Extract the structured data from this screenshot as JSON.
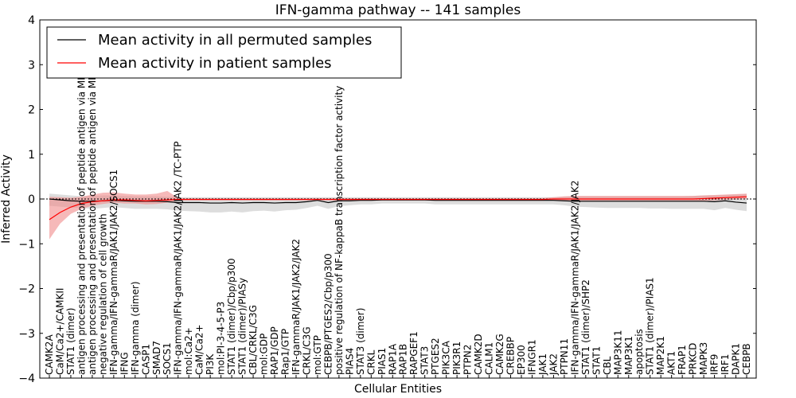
{
  "chart_data": {
    "type": "line",
    "title": "IFN-gamma pathway -- 141 samples",
    "xlabel": "Cellular Entities",
    "ylabel": "Inferred Activity",
    "ylim": [
      -4,
      4
    ],
    "yticks": [
      -4,
      -3,
      -2,
      -1,
      0,
      1,
      2,
      3,
      4
    ],
    "ytick_labels": [
      "−4",
      "−3",
      "−2",
      "−1",
      "0",
      "1",
      "2",
      "3",
      "4"
    ],
    "legend_position": "top-left",
    "categories": [
      "CAMK2A",
      "CaM/Ca2+/CAMKII",
      "STAT1 (dimer)",
      "antigen processing and presentation of peptide antigen via MHC class I",
      "antigen processing and presentation of peptide antigen via MHC class II",
      "negative regulation of cell growth",
      "IFN-gamma/IFN-gammaR/JAK1/JAK2/SOCS1",
      "IFNG",
      "IFN-gamma (dimer)",
      "CASP1",
      "SMAD7",
      "SOCS1",
      "IFN-gamma/IFN-gammaR/JAK1/JAK2/JAK2 /TC-PTP",
      "mol:Ca2+",
      "CaM/Ca2+",
      "PI3K",
      "mol:PI-3-4-5-P3",
      "STAT1 (dimer)/Cbp/p300",
      "STAT1 (dimer)/PIASy",
      "CBL/CRKL/C3G",
      "mol:GDP",
      "RAP1/GDP",
      "Rap1/GTP",
      "IFN-gammaR/JAK1/JAK2/JAK2",
      "CRKL/C3G",
      "mol:GTP",
      "CEBPB/PTGES2/Cbp/p300",
      "positive regulation of NF-kappaB transcription factor activity",
      "PIAS4",
      "STAT3 (dimer)",
      "CRKL",
      "PIAS1",
      "RAP1A",
      "RAP1B",
      "RAPGEF1",
      "STAT3",
      "PTGES2",
      "PIK3CA",
      "PIK3R1",
      "PTPN2",
      "CAMK2D",
      "CALM1",
      "CAMK2G",
      "CREBBP",
      "EP300",
      "IFNGR1",
      "JAK1",
      "JAK2",
      "PTPN11",
      "IFN-gamma/IFN-gammaR/JAK1/JAK2/JAK2",
      "STAT1 (dimer)/SHP2",
      "STAT1",
      "CBL",
      "MAP3K11",
      "MAP3K1",
      "apoptosis",
      "STAT1 (dimer)/PIAS1",
      "MAP2K1",
      "AKT1",
      "FRAP1",
      "PRKCD",
      "MAPK3",
      "IRF9",
      "IRF1",
      "DAPK1",
      "CEBPB"
    ],
    "series": [
      {
        "name": "Mean activity in all permuted samples",
        "color": "#000000",
        "band_color": "#bbbbbb",
        "values": [
          0.0,
          -0.02,
          -0.04,
          -0.05,
          -0.05,
          -0.04,
          -0.03,
          -0.04,
          -0.05,
          -0.05,
          -0.05,
          -0.06,
          -0.08,
          -0.08,
          -0.08,
          -0.09,
          -0.09,
          -0.08,
          -0.09,
          -0.08,
          -0.08,
          -0.09,
          -0.08,
          -0.08,
          -0.06,
          -0.03,
          -0.08,
          -0.04,
          -0.04,
          -0.03,
          -0.03,
          -0.02,
          -0.02,
          -0.02,
          -0.02,
          -0.02,
          -0.03,
          -0.03,
          -0.03,
          -0.03,
          -0.03,
          -0.03,
          -0.03,
          -0.03,
          -0.03,
          -0.03,
          -0.03,
          -0.03,
          -0.04,
          -0.05,
          -0.05,
          -0.05,
          -0.05,
          -0.05,
          -0.05,
          -0.05,
          -0.05,
          -0.05,
          -0.05,
          -0.05,
          -0.05,
          -0.05,
          -0.06,
          -0.04,
          -0.07,
          -0.09
        ],
        "lower": [
          -0.15,
          -0.17,
          -0.19,
          -0.2,
          -0.22,
          -0.2,
          -0.18,
          -0.2,
          -0.22,
          -0.22,
          -0.22,
          -0.23,
          -0.26,
          -0.27,
          -0.28,
          -0.3,
          -0.3,
          -0.28,
          -0.3,
          -0.27,
          -0.26,
          -0.28,
          -0.25,
          -0.24,
          -0.2,
          -0.15,
          -0.22,
          -0.16,
          -0.14,
          -0.12,
          -0.12,
          -0.1,
          -0.1,
          -0.1,
          -0.1,
          -0.1,
          -0.12,
          -0.12,
          -0.12,
          -0.12,
          -0.12,
          -0.12,
          -0.12,
          -0.12,
          -0.12,
          -0.12,
          -0.12,
          -0.12,
          -0.14,
          -0.17,
          -0.18,
          -0.19,
          -0.2,
          -0.2,
          -0.2,
          -0.2,
          -0.21,
          -0.21,
          -0.22,
          -0.22,
          -0.22,
          -0.22,
          -0.25,
          -0.2,
          -0.24,
          -0.27
        ],
        "upper": [
          0.12,
          0.1,
          0.08,
          0.06,
          0.07,
          0.08,
          0.08,
          0.07,
          0.06,
          0.06,
          0.06,
          0.05,
          0.04,
          0.04,
          0.04,
          0.04,
          0.04,
          0.04,
          0.04,
          0.04,
          0.04,
          0.04,
          0.04,
          0.04,
          0.04,
          0.04,
          0.04,
          0.04,
          0.04,
          0.04,
          0.04,
          0.04,
          0.04,
          0.04,
          0.04,
          0.04,
          0.04,
          0.04,
          0.04,
          0.04,
          0.04,
          0.04,
          0.04,
          0.04,
          0.04,
          0.04,
          0.04,
          0.04,
          0.05,
          0.06,
          0.06,
          0.06,
          0.06,
          0.06,
          0.06,
          0.06,
          0.06,
          0.06,
          0.06,
          0.06,
          0.07,
          0.08,
          0.08,
          0.09,
          0.1,
          0.11
        ]
      },
      {
        "name": "Mean activity in patient samples",
        "color": "#ff0000",
        "band_color": "#f08a8a",
        "values": [
          -0.46,
          -0.3,
          -0.18,
          -0.1,
          -0.06,
          -0.04,
          -0.02,
          -0.02,
          -0.03,
          -0.04,
          -0.03,
          -0.02,
          -0.01,
          -0.01,
          -0.01,
          -0.01,
          -0.01,
          -0.01,
          -0.01,
          -0.01,
          -0.01,
          -0.01,
          -0.01,
          -0.01,
          -0.01,
          -0.01,
          -0.01,
          -0.01,
          -0.01,
          -0.01,
          -0.01,
          -0.01,
          -0.01,
          -0.01,
          -0.01,
          -0.01,
          -0.01,
          -0.01,
          -0.01,
          -0.01,
          -0.01,
          -0.01,
          -0.01,
          -0.01,
          -0.01,
          -0.01,
          -0.01,
          0.0,
          0.0,
          0.0,
          0.0,
          0.0,
          0.0,
          0.0,
          0.0,
          0.0,
          0.0,
          0.0,
          0.0,
          0.0,
          0.0,
          0.01,
          0.02,
          0.03,
          0.04,
          0.05
        ],
        "lower": [
          -0.9,
          -0.55,
          -0.33,
          -0.22,
          -0.15,
          -0.11,
          -0.08,
          -0.1,
          -0.1,
          -0.12,
          -0.11,
          -0.08,
          -0.03,
          -0.03,
          -0.03,
          -0.03,
          -0.03,
          -0.03,
          -0.03,
          -0.03,
          -0.03,
          -0.03,
          -0.03,
          -0.03,
          -0.03,
          -0.03,
          -0.03,
          -0.03,
          -0.03,
          -0.03,
          -0.03,
          -0.03,
          -0.03,
          -0.03,
          -0.03,
          -0.03,
          -0.03,
          -0.03,
          -0.03,
          -0.03,
          -0.03,
          -0.03,
          -0.03,
          -0.03,
          -0.03,
          -0.03,
          -0.03,
          -0.03,
          -0.03,
          -0.04,
          -0.04,
          -0.04,
          -0.04,
          -0.04,
          -0.04,
          -0.04,
          -0.04,
          -0.04,
          -0.04,
          -0.04,
          -0.04,
          -0.04,
          -0.03,
          -0.02,
          -0.01,
          0.0
        ],
        "upper": [
          0.05,
          0.04,
          0.03,
          0.05,
          0.1,
          0.14,
          0.15,
          0.12,
          0.1,
          0.1,
          0.12,
          0.18,
          0.02,
          0.02,
          0.02,
          0.02,
          0.02,
          0.02,
          0.02,
          0.02,
          0.02,
          0.02,
          0.02,
          0.02,
          0.02,
          0.02,
          0.02,
          0.02,
          0.02,
          0.02,
          0.02,
          0.02,
          0.02,
          0.02,
          0.02,
          0.02,
          0.02,
          0.02,
          0.02,
          0.02,
          0.02,
          0.02,
          0.02,
          0.02,
          0.02,
          0.02,
          0.02,
          0.04,
          0.06,
          0.07,
          0.07,
          0.07,
          0.07,
          0.07,
          0.07,
          0.07,
          0.07,
          0.07,
          0.07,
          0.07,
          0.07,
          0.08,
          0.09,
          0.1,
          0.11,
          0.12
        ]
      }
    ]
  }
}
